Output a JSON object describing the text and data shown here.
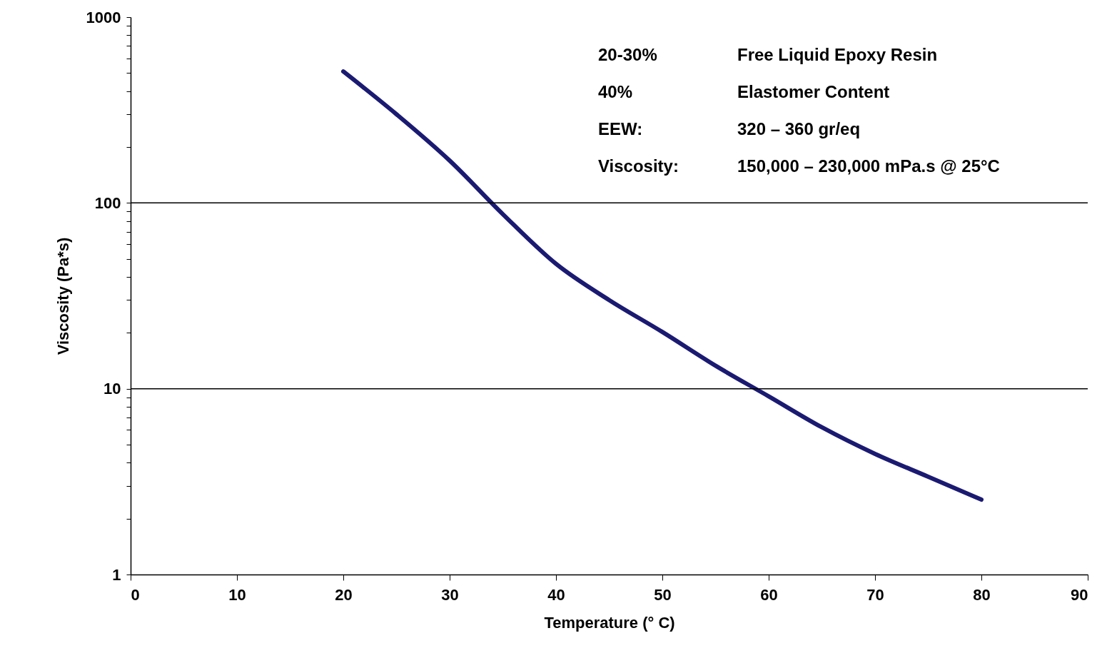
{
  "chart_data": {
    "type": "line",
    "xlabel": "Temperature (° C)",
    "ylabel": "Viscosity (Pa*s)",
    "x": [
      20,
      25,
      30,
      35,
      40,
      45,
      50,
      55,
      60,
      65,
      70,
      75,
      80
    ],
    "series": [
      {
        "color": "#1b1a72",
        "values": [
          510,
          300,
          169,
          87,
          47,
          30,
          20.2,
          13.3,
          9.1,
          6.2,
          4.46,
          3.36,
          2.53
        ]
      }
    ],
    "xlim": [
      0,
      90
    ],
    "xticks": [
      0,
      10,
      20,
      30,
      40,
      50,
      60,
      70,
      80,
      90
    ],
    "ylim": [
      1,
      1000
    ],
    "yticks": [
      1,
      {
        "value": 2,
        "label": null
      },
      {
        "value": 3,
        "label": null
      },
      {
        "value": 4,
        "label": null
      },
      {
        "value": 5,
        "label": null
      },
      {
        "value": 6,
        "label": null
      },
      {
        "value": 7,
        "label": null
      },
      {
        "value": 8,
        "label": null
      },
      {
        "value": 9,
        "label": null
      },
      10,
      {
        "value": 20,
        "label": null
      },
      {
        "value": 30,
        "label": null
      },
      {
        "value": 40,
        "label": null
      },
      {
        "value": 50,
        "label": null
      },
      {
        "value": 60,
        "label": null
      },
      {
        "value": 70,
        "label": null
      },
      {
        "value": 80,
        "label": null
      },
      {
        "value": 90,
        "label": null
      },
      100,
      {
        "value": 200,
        "label": null
      },
      {
        "value": 300,
        "label": null
      },
      {
        "value": 400,
        "label": null
      },
      {
        "value": 500,
        "label": null
      },
      {
        "value": 600,
        "label": null
      },
      {
        "value": 700,
        "label": null
      },
      {
        "value": 800,
        "label": null
      },
      {
        "value": 900,
        "label": null
      },
      1000
    ],
    "log": "y",
    "grid": "y",
    "marker": "none",
    "line_style": "solid",
    "legend": false,
    "annotations": [
      "20-30%",
      "Free Liquid Epoxy Resin",
      "40%",
      "Elastomer Content",
      "EEW:",
      "320 – 360 gr/eq",
      "Viscosity:",
      "150,000 – 230,000 mPa.s @ 25°C"
    ]
  }
}
